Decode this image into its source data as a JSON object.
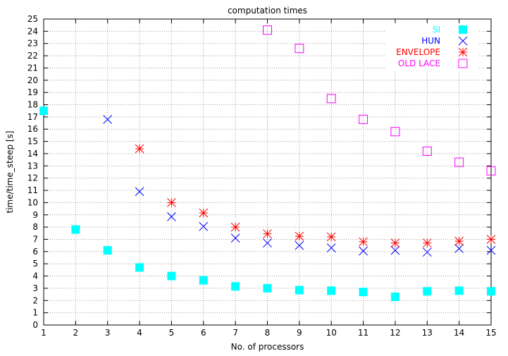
{
  "chart_data": {
    "type": "scatter",
    "title": "computation times",
    "xlabel": "No. of processors",
    "ylabel": "time/time_steep [s]",
    "xlim": [
      1,
      15
    ],
    "ylim": [
      0,
      25
    ],
    "xticks": [
      1,
      2,
      3,
      4,
      5,
      6,
      7,
      8,
      9,
      10,
      11,
      12,
      13,
      14,
      15
    ],
    "yticks": [
      0,
      1,
      2,
      3,
      4,
      5,
      6,
      7,
      8,
      9,
      10,
      11,
      12,
      13,
      14,
      15,
      16,
      17,
      18,
      19,
      20,
      21,
      22,
      23,
      24,
      25
    ],
    "grid": true,
    "legend_position": "top-right",
    "series": [
      {
        "name": "SI",
        "marker": "filled-square",
        "color": "#00ffff",
        "x": [
          1,
          2,
          3,
          4,
          5,
          6,
          7,
          8,
          9,
          10,
          11,
          12,
          13,
          14,
          15
        ],
        "y": [
          17.5,
          7.8,
          6.1,
          4.7,
          4.0,
          3.65,
          3.15,
          3.0,
          2.85,
          2.8,
          2.7,
          2.3,
          2.75,
          2.8,
          2.75
        ]
      },
      {
        "name": "HUN",
        "marker": "cross",
        "color": "#0000ff",
        "x": [
          3,
          4,
          5,
          6,
          7,
          8,
          9,
          10,
          11,
          12,
          13,
          14,
          15
        ],
        "y": [
          16.8,
          10.9,
          8.85,
          8.05,
          7.1,
          6.7,
          6.5,
          6.3,
          6.05,
          6.1,
          5.95,
          6.25,
          6.1
        ]
      },
      {
        "name": "ENVELOPE",
        "marker": "star",
        "color": "#ff0000",
        "x": [
          4,
          5,
          6,
          7,
          8,
          9,
          10,
          11,
          12,
          13,
          14,
          15
        ],
        "y": [
          14.4,
          10.0,
          9.15,
          8.0,
          7.45,
          7.25,
          7.2,
          6.8,
          6.7,
          6.7,
          6.85,
          7.0
        ]
      },
      {
        "name": "OLD LACE",
        "marker": "open-square",
        "color": "#ff00ff",
        "x": [
          8,
          9,
          10,
          11,
          12,
          13,
          14,
          15
        ],
        "y": [
          24.1,
          22.6,
          18.5,
          16.8,
          15.8,
          14.2,
          13.3,
          12.6
        ]
      }
    ]
  }
}
